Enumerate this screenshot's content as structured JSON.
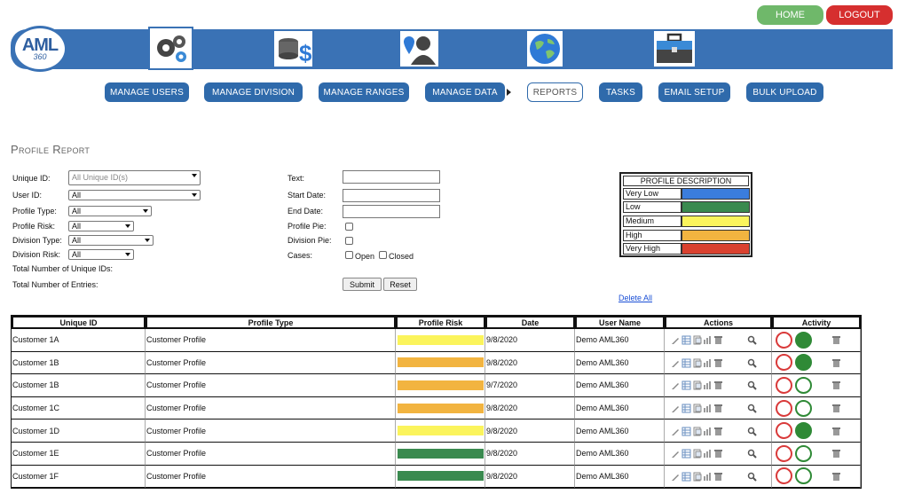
{
  "header": {
    "home_label": "HOME",
    "logout_label": "LOGOUT",
    "logo_text": "AML",
    "logo_sub": "360",
    "nav_icons": [
      "gears-icon",
      "coins-dollar-icon",
      "map-pin-person-icon",
      "globe-icon",
      "briefcase-icon"
    ]
  },
  "menu": {
    "items": [
      "MANAGE USERS",
      "MANAGE DIVISION",
      "MANAGE RANGES",
      "MANAGE DATA",
      "REPORTS",
      "TASKS",
      "EMAIL SETUP",
      "BULK UPLOAD"
    ],
    "active": "REPORTS"
  },
  "page": {
    "title": "Profile Report"
  },
  "filters": {
    "unique_id_label": "Unique ID:",
    "unique_id_value": "All Unique ID(s)",
    "user_id_label": "User ID:",
    "user_id_value": "All",
    "profile_type_label": "Profile Type:",
    "profile_type_value": "All",
    "profile_risk_label": "Profile Risk:",
    "profile_risk_value": "All",
    "division_type_label": "Division Type:",
    "division_type_value": "All",
    "division_risk_label": "Division Risk:",
    "division_risk_value": "All",
    "total_unique_label": "Total Number of Unique IDs:",
    "total_entries_label": "Total Number of Entries:",
    "text_label": "Text:",
    "start_date_label": "Start Date:",
    "end_date_label": "End Date:",
    "profile_pie_label": "Profile Pie:",
    "division_pie_label": "Division Pie:",
    "cases_label": "Cases:",
    "open_label": "Open",
    "closed_label": "Closed",
    "submit_label": "Submit",
    "reset_label": "Reset"
  },
  "legend": {
    "title": "PROFILE DESCRIPTION",
    "items": [
      {
        "label": "Very Low",
        "color": "#3b7ddd"
      },
      {
        "label": "Low",
        "color": "#3a8a4f"
      },
      {
        "label": "Medium",
        "color": "#fbf45c"
      },
      {
        "label": "High",
        "color": "#f2b440"
      },
      {
        "label": "Very High",
        "color": "#d9412f"
      }
    ]
  },
  "delete_all_label": "Delete All",
  "table": {
    "headers": [
      "Unique ID",
      "Profile Type",
      "Profile Risk",
      "Date",
      "User Name",
      "Actions",
      "Activity"
    ],
    "rows": [
      {
        "id": "Customer 1A",
        "type": "Customer Profile",
        "risk_color": "#fbf45c",
        "date": "9/8/2020",
        "user": "Demo AML360",
        "activity_done": true
      },
      {
        "id": "Customer 1B",
        "type": "Customer Profile",
        "risk_color": "#f2b440",
        "date": "9/8/2020",
        "user": "Demo AML360",
        "activity_done": true
      },
      {
        "id": "Customer 1B",
        "type": "Customer Profile",
        "risk_color": "#f2b440",
        "date": "9/7/2020",
        "user": "Demo AML360",
        "activity_done": false
      },
      {
        "id": "Customer 1C",
        "type": "Customer Profile",
        "risk_color": "#f2b440",
        "date": "9/8/2020",
        "user": "Demo AML360",
        "activity_done": false
      },
      {
        "id": "Customer 1D",
        "type": "Customer Profile",
        "risk_color": "#fbf45c",
        "date": "9/8/2020",
        "user": "Demo AML360",
        "activity_done": true
      },
      {
        "id": "Customer 1E",
        "type": "Customer Profile",
        "risk_color": "#3a8a4f",
        "date": "9/8/2020",
        "user": "Demo AML360",
        "activity_done": false
      },
      {
        "id": "Customer 1F",
        "type": "Customer Profile",
        "risk_color": "#3a8a4f",
        "date": "9/8/2020",
        "user": "Demo AML360",
        "activity_done": false
      }
    ]
  }
}
